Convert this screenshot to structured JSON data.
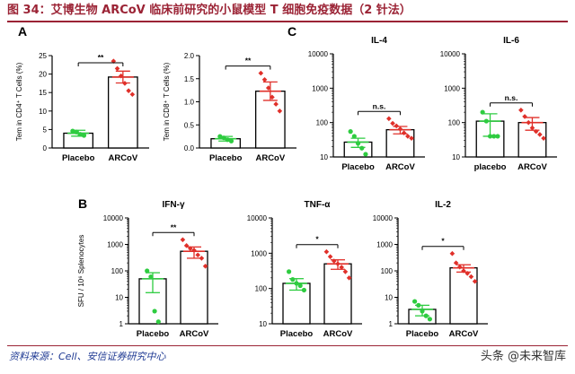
{
  "header": {
    "title": "图 34：艾博生物 ARCoV 临床前研究的小鼠模型 T 细胞免疫数据（2 针法）"
  },
  "footer": {
    "source": "资料来源：Cell、安信证券研究中心",
    "watermark": "头条 @未来智库"
  },
  "colors": {
    "accent": "#9b2335",
    "placebo": "#2ecc40",
    "arcov": "#e0302a",
    "source": "#1f3a93"
  },
  "chart_data": [
    {
      "id": "cd4",
      "panel": "A",
      "type": "bar",
      "scale": "linear",
      "title": "",
      "ylabel": "Tem in CD4⁺ T Cells (%)",
      "ylim": [
        0,
        25
      ],
      "yticks": [
        0,
        5,
        10,
        15,
        20,
        25
      ],
      "categories": [
        "Placebo",
        "ARCoV"
      ],
      "values": [
        4.0,
        19.2
      ],
      "errors": [
        0.8,
        1.6
      ],
      "points": [
        [
          4.6,
          4.3,
          3.7,
          3.4
        ],
        [
          23.5,
          21.5,
          19.5,
          17.5,
          15.5,
          14.5
        ]
      ],
      "sig": "**"
    },
    {
      "id": "cd8",
      "panel": "",
      "type": "bar",
      "scale": "linear",
      "title": "",
      "ylabel": "Tem in CD8⁺ T Cells (%)",
      "ylim": [
        0,
        2.0
      ],
      "yticks": [
        0.0,
        0.5,
        1.0,
        1.5,
        2.0
      ],
      "categories": [
        "Placebo",
        "ARCoV"
      ],
      "values": [
        0.2,
        1.23
      ],
      "errors": [
        0.05,
        0.2
      ],
      "points": [
        [
          0.25,
          0.22,
          0.18,
          0.15
        ],
        [
          1.62,
          1.48,
          1.3,
          1.1,
          0.95,
          0.8
        ]
      ],
      "sig": "**"
    },
    {
      "id": "il4",
      "panel": "C",
      "type": "bar",
      "scale": "log",
      "title": "IL-4",
      "ylabel": "",
      "ylim": [
        10,
        10000
      ],
      "yticks": [
        10,
        100,
        1000,
        10000
      ],
      "categories": [
        "Placebo",
        "ARCoV"
      ],
      "values": [
        27,
        62
      ],
      "errors": [
        8,
        15
      ],
      "points": [
        [
          55,
          40,
          25,
          18,
          12
        ],
        [
          130,
          95,
          80,
          65,
          50,
          40,
          35
        ]
      ],
      "sig": "n.s."
    },
    {
      "id": "il6",
      "panel": "",
      "type": "bar",
      "scale": "log",
      "title": "IL-6",
      "ylabel": "",
      "ylim": [
        10,
        10000
      ],
      "yticks": [
        10,
        100,
        1000,
        10000
      ],
      "categories": [
        "placebo",
        "ARCoV"
      ],
      "values": [
        110,
        100
      ],
      "errors": [
        70,
        40
      ],
      "points": [
        [
          200,
          110,
          40,
          40,
          40
        ],
        [
          230,
          150,
          100,
          70,
          55,
          45,
          35
        ]
      ],
      "sig": "n.s."
    },
    {
      "id": "ifng",
      "panel": "B",
      "type": "bar",
      "scale": "log",
      "title": "IFN-γ",
      "ylabel": "SFU / 10⁶ Splenocytes",
      "ylim": [
        1,
        10000
      ],
      "yticks": [
        1,
        10,
        100,
        1000,
        10000
      ],
      "categories": [
        "Placebo",
        "ARCoV"
      ],
      "values": [
        50,
        550
      ],
      "errors": [
        35,
        250
      ],
      "points": [
        [
          100,
          60,
          3,
          1.2
        ],
        [
          1500,
          900,
          700,
          600,
          400,
          300,
          150
        ]
      ],
      "sig": "**"
    },
    {
      "id": "tnfa",
      "panel": "",
      "type": "bar",
      "scale": "log",
      "title": "TNF-α",
      "ylabel": "",
      "ylim": [
        10,
        10000
      ],
      "yticks": [
        10,
        100,
        1000,
        10000
      ],
      "categories": [
        "Placebo",
        "ARCoV"
      ],
      "values": [
        140,
        500
      ],
      "errors": [
        50,
        150
      ],
      "points": [
        [
          300,
          180,
          140,
          120,
          90
        ],
        [
          1100,
          800,
          600,
          500,
          400,
          300,
          200
        ]
      ],
      "sig": "*"
    },
    {
      "id": "il2",
      "panel": "",
      "type": "bar",
      "scale": "log",
      "title": "IL-2",
      "ylabel": "",
      "ylim": [
        1,
        10000
      ],
      "yticks": [
        1,
        10,
        100,
        1000,
        10000
      ],
      "categories": [
        "Placebo",
        "ARCoV"
      ],
      "values": [
        3.5,
        130
      ],
      "errors": [
        1.5,
        40
      ],
      "points": [
        [
          7,
          5,
          3,
          2,
          1.5
        ],
        [
          450,
          200,
          140,
          100,
          80,
          60,
          40
        ]
      ],
      "sig": "*"
    }
  ]
}
